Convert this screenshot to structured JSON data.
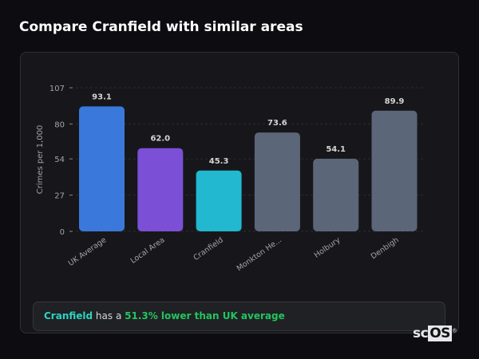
{
  "header": {
    "title": "Compare Cranfield with similar areas"
  },
  "chart_data": {
    "type": "bar",
    "categories": [
      "UK Average",
      "Local Area",
      "Cranfield",
      "Monkton He...",
      "Holbury",
      "Denbigh"
    ],
    "values": [
      93.1,
      62.0,
      45.3,
      73.6,
      54.1,
      89.9
    ],
    "value_labels": [
      "93.1",
      "62.0",
      "45.3",
      "73.6",
      "54.1",
      "89.9"
    ],
    "colors": [
      "#3a78dc",
      "#7b4fd6",
      "#21b8d0",
      "#5b6678",
      "#5b6678",
      "#5b6678"
    ],
    "title": "",
    "xlabel": "",
    "ylabel": "Crimes per 1,000",
    "ylim": [
      0,
      107
    ],
    "yticks": [
      0,
      27,
      54,
      80,
      107
    ],
    "grid": true
  },
  "summary": {
    "area": "Cranfield",
    "middle": " has a ",
    "comparison": "51.3% lower than UK average"
  },
  "brand": {
    "logo": "scOS"
  }
}
